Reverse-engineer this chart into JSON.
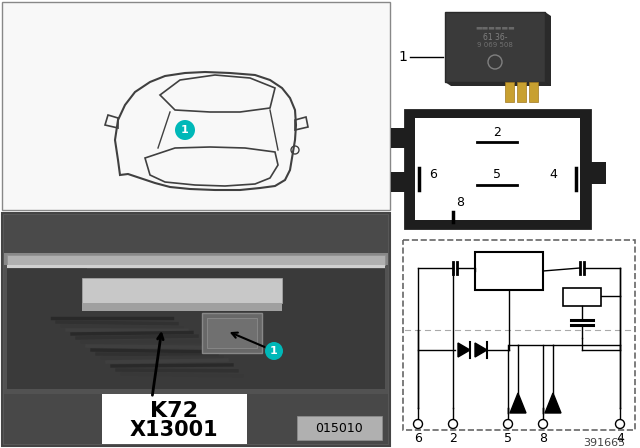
{
  "bg_color": "#ffffff",
  "ref_number": "391665",
  "teal": "#00b8b8",
  "black": "#000000",
  "white": "#ffffff",
  "dark_box": "#2a2a2a",
  "photo_dark": "#646464",
  "photo_mid": "#787878",
  "photo_light": "#909090",
  "relay_dark": "#3a3a3a",
  "relay_body": "#424242",
  "pin_gold": "#c8a040",
  "conn_border": "#1a1a1a",
  "label_bg": "#ffffff",
  "panel_border": "#000000",
  "car_line": "#404040",
  "car_bg": "#f0f0f0",
  "photo_ref_bg": "#c0c0c0",
  "circuit_dash": "#555555",
  "pin_bottom_labels": [
    "6",
    "2",
    "5",
    "8",
    "4"
  ]
}
